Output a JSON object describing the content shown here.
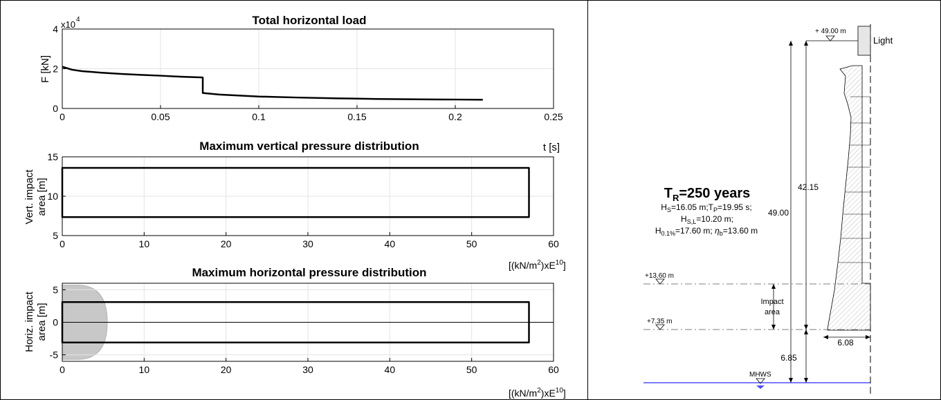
{
  "chart_data": [
    {
      "type": "line",
      "title": "Total horizontal load",
      "ylabel": "F [kN]",
      "xlabel": "t [s]",
      "exponent_base": "x10",
      "exponent_power": "4",
      "xlim": [
        0,
        0.25
      ],
      "ylim": [
        0,
        4
      ],
      "xticks": [
        0,
        0.05,
        0.1,
        0.15,
        0.2,
        0.25
      ],
      "xtick_labels": [
        "0",
        "0.05",
        "0.1",
        "0.15",
        "0.2",
        "0.25"
      ],
      "yticks": [
        0,
        2,
        4
      ],
      "ytick_labels": [
        "0",
        "2",
        "4"
      ],
      "grid": true,
      "series": [
        {
          "x": [
            0,
            0.005,
            0.01,
            0.02,
            0.03,
            0.04,
            0.05,
            0.06,
            0.0715,
            0.0715,
            0.08,
            0.1,
            0.12,
            0.14,
            0.16,
            0.18,
            0.2,
            0.214
          ],
          "y": [
            2.1,
            1.95,
            1.88,
            1.8,
            1.74,
            1.69,
            1.65,
            1.6,
            1.56,
            0.78,
            0.7,
            0.6,
            0.55,
            0.51,
            0.48,
            0.46,
            0.45,
            0.44
          ]
        }
      ]
    },
    {
      "type": "line",
      "title": "Maximum vertical pressure distribution",
      "ylabel": "Vert. impact area [m]",
      "xlabel": "",
      "xlim": [
        0,
        60
      ],
      "ylim": [
        5,
        15
      ],
      "xticks": [
        0,
        10,
        20,
        30,
        40,
        50,
        60
      ],
      "xtick_labels": [
        "0",
        "10",
        "20",
        "30",
        "40",
        "50",
        "60"
      ],
      "yticks": [
        5,
        10,
        15
      ],
      "ytick_labels": [
        "5",
        "10",
        "15"
      ],
      "grid": true,
      "series": [
        {
          "x": [
            0,
            57,
            57,
            0
          ],
          "y": [
            13.6,
            13.6,
            7.35,
            7.35
          ]
        }
      ]
    },
    {
      "type": "line",
      "title": "Maximum horizontal pressure distribution",
      "ylabel": "Horiz. impact area [m]",
      "xlabel": "",
      "xlim": [
        0,
        60
      ],
      "ylim": [
        -6,
        6
      ],
      "xticks": [
        0,
        10,
        20,
        30,
        40,
        50,
        60
      ],
      "xtick_labels": [
        "0",
        "10",
        "20",
        "30",
        "40",
        "50",
        "60"
      ],
      "yticks": [
        -5,
        0,
        5
      ],
      "ytick_labels": [
        "-5",
        "0",
        "5"
      ],
      "grid": true,
      "series": [
        {
          "x": [
            0,
            57,
            57,
            0
          ],
          "y": [
            3.1,
            3.1,
            -3.1,
            -3.1
          ]
        }
      ],
      "shaded_region": {
        "x_max": 5.5,
        "y_half": 5.7,
        "color": "#c8c8c8"
      }
    }
  ],
  "axis_unit_between": "t [s]",
  "pressure_unit": {
    "prefix": "[(kN/m",
    "sup1": "2",
    "mid": ")xE",
    "sup2": "10",
    "suffix": "]"
  },
  "diagram": {
    "lighthouse_label": "Light",
    "top_level": "+ 49.00 m",
    "dim_total": "49.00",
    "dim_upper": "42.15",
    "dim_lower": "6.85",
    "dim_base": "6.08",
    "level_upper": "+13.60 m",
    "level_lower": "+7.35 m",
    "impact_label_1": "Impact",
    "impact_label_2": "area",
    "mhws_label": "MHWS",
    "return_period": {
      "t_main": "T",
      "t_sub": "R",
      "t_rest": "=250 years"
    },
    "params": {
      "hs_main": "H",
      "hs_sub": "S",
      "hs_rest": "=16.05 m;T",
      "tp_sub": "P",
      "tp_rest": "=19.95 s;",
      "hsl_main": "H",
      "hsl_sub": "S,L",
      "hsl_rest": "=10.20 m;",
      "h01_main": "H",
      "h01_sub": "0.1%",
      "h01_rest": "=17.60 m; ",
      "eta_main": "η",
      "eta_sub": "b",
      "eta_rest": "=13.60 m"
    },
    "colors": {
      "water": "#7b7bff",
      "hatch": "#bdbdbd",
      "line": "#000000"
    }
  }
}
